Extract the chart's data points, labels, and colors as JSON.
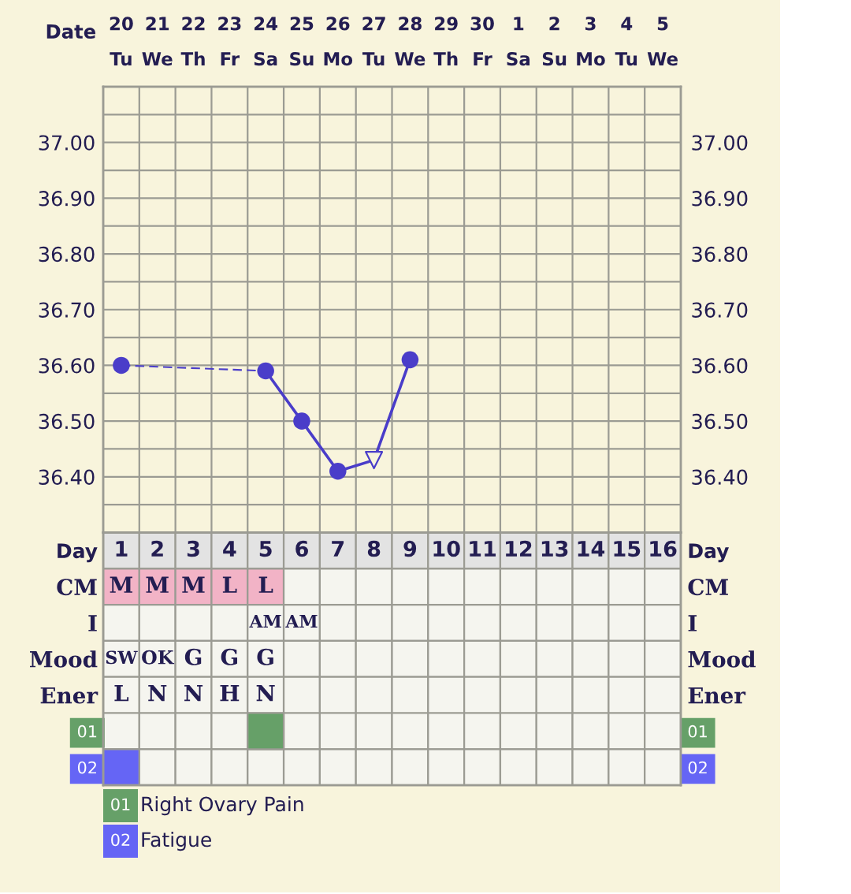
{
  "chart_data": [
    {
      "type": "line",
      "xlabel": "Date",
      "categories": [
        "20\nTu",
        "21\nWe",
        "22\nTh",
        "23\nFr",
        "24\nSa",
        "25\nSu",
        "26\nMo",
        "27\nTu",
        "28\nWe",
        "29\nTh",
        "30\nFr",
        "1\nSa",
        "2\nSu",
        "3\nMo",
        "4\nTu",
        "5\nWe"
      ],
      "ylim": [
        36.3,
        37.1
      ],
      "yticks": [
        {
          "value": 36.35,
          "label": null
        },
        {
          "value": 36.4,
          "label": "36.40"
        },
        {
          "value": 36.45,
          "label": null
        },
        {
          "value": 36.5,
          "label": "36.50"
        },
        {
          "value": 36.55,
          "label": null
        },
        {
          "value": 36.6,
          "label": "36.60"
        },
        {
          "value": 36.65,
          "label": null
        },
        {
          "value": 36.7,
          "label": "36.70"
        },
        {
          "value": 36.75,
          "label": null
        },
        {
          "value": 36.8,
          "label": "36.80"
        },
        {
          "value": 36.85,
          "label": null
        },
        {
          "value": 36.9,
          "label": "36.90"
        },
        {
          "value": 36.95,
          "label": null
        },
        {
          "value": 37.0,
          "label": "37.00"
        },
        {
          "value": 37.05,
          "label": null
        }
      ],
      "y2lim": [
        36.3,
        37.1
      ],
      "y2ticks": [
        {
          "value": 36.35,
          "label": null
        },
        {
          "value": 36.4,
          "label": "36.40"
        },
        {
          "value": 36.45,
          "label": null
        },
        {
          "value": 36.5,
          "label": "36.50"
        },
        {
          "value": 36.55,
          "label": null
        },
        {
          "value": 36.6,
          "label": "36.60"
        },
        {
          "value": 36.65,
          "label": null
        },
        {
          "value": 36.7,
          "label": "36.70"
        },
        {
          "value": 36.75,
          "label": null
        },
        {
          "value": 36.8,
          "label": "36.80"
        },
        {
          "value": 36.85,
          "label": null
        },
        {
          "value": 36.9,
          "label": "36.90"
        },
        {
          "value": 36.95,
          "label": null
        },
        {
          "value": 37.0,
          "label": "37.00"
        },
        {
          "value": 37.05,
          "label": null
        }
      ],
      "grid": true,
      "series": [
        {
          "type": "line",
          "line_style": "dashed",
          "marker": "none",
          "color": "#4a3dc9",
          "values": [
            36.6,
            null,
            null,
            null,
            36.59,
            null,
            null,
            null,
            null,
            null,
            null,
            null,
            null,
            null,
            null,
            null
          ]
        },
        {
          "type": "line",
          "line_style": "solid",
          "marker": "none",
          "color": "#4a3dc9",
          "values": [
            null,
            null,
            null,
            null,
            36.59,
            36.5,
            36.41,
            36.43,
            36.61,
            null,
            null,
            null,
            null,
            null,
            null,
            null
          ]
        },
        {
          "type": "scatter",
          "marker": "circle",
          "color": "#4a3dc9",
          "values": [
            36.6,
            null,
            null,
            null,
            36.59,
            36.5,
            36.41,
            null,
            36.61,
            null,
            null,
            null,
            null,
            null,
            null,
            null
          ]
        },
        {
          "type": "scatter",
          "marker": "triangle",
          "color": "#4a3dc9",
          "values": [
            null,
            null,
            null,
            null,
            null,
            null,
            null,
            36.43,
            null,
            null,
            null,
            null,
            null,
            null,
            null,
            null
          ]
        }
      ]
    },
    {
      "type": "heatmap",
      "categories": [
        "1",
        "2",
        "3",
        "4",
        "5",
        "6",
        "7",
        "8",
        "9",
        "10",
        "11",
        "12",
        "13",
        "14",
        "15",
        "16"
      ],
      "y_categories": [
        "Day",
        "CM",
        "I",
        "Mood",
        "Ener",
        "01",
        "02"
      ],
      "y2_categories": [
        "Day",
        "CM",
        "I",
        "Mood",
        "Ener",
        "01",
        "02"
      ],
      "cells": [
        [
          null,
          null,
          null,
          null,
          null,
          null,
          null,
          null,
          null,
          null,
          null,
          null,
          null,
          null,
          null,
          null
        ],
        [
          null,
          null,
          null,
          null,
          null,
          null,
          null,
          null,
          null,
          null,
          null,
          null,
          null,
          null,
          null,
          null
        ],
        [
          null,
          null,
          null,
          null,
          null,
          null,
          null,
          null,
          null,
          null,
          null,
          null,
          null,
          null,
          null,
          null
        ],
        [
          null,
          null,
          null,
          null,
          null,
          null,
          null,
          null,
          null,
          null,
          null,
          null,
          null,
          null,
          null,
          null
        ],
        [
          null,
          null,
          null,
          null,
          null,
          null,
          null,
          null,
          null,
          null,
          null,
          null,
          null,
          null,
          null,
          null
        ],
        [
          null,
          null,
          null,
          null,
          null,
          null,
          null,
          null,
          null,
          null,
          null,
          null,
          null,
          null,
          null,
          null
        ],
        [
          null,
          null,
          null,
          null,
          null,
          null,
          null,
          null,
          null,
          null,
          null,
          null,
          null,
          null,
          null,
          null
        ]
      ],
      "cell_labels": [
        [
          null,
          null,
          null,
          null,
          null,
          null,
          null,
          null,
          null,
          null,
          null,
          null,
          null,
          null,
          null,
          null
        ],
        [
          "M",
          "M",
          "M",
          "L",
          "L",
          null,
          null,
          null,
          null,
          null,
          null,
          null,
          null,
          null,
          null,
          null
        ],
        [
          null,
          null,
          null,
          null,
          "AM",
          "AM",
          null,
          null,
          null,
          null,
          null,
          null,
          null,
          null,
          null,
          null
        ],
        [
          "SW",
          "OK",
          "G",
          "G",
          "G",
          null,
          null,
          null,
          null,
          null,
          null,
          null,
          null,
          null,
          null,
          null
        ],
        [
          "L",
          "N",
          "N",
          "H",
          "N",
          null,
          null,
          null,
          null,
          null,
          null,
          null,
          null,
          null,
          null,
          null
        ],
        [
          null,
          null,
          null,
          null,
          null,
          null,
          null,
          null,
          null,
          null,
          null,
          null,
          null,
          null,
          null,
          null
        ],
        [
          null,
          null,
          null,
          null,
          null,
          null,
          null,
          null,
          null,
          null,
          null,
          null,
          null,
          null,
          null,
          null
        ]
      ],
      "colors": [
        [
          "#e3e3e3",
          "#e3e3e3",
          "#e3e3e3",
          "#e3e3e3",
          "#e3e3e3",
          "#e3e3e3",
          "#e3e3e3",
          "#e3e3e3",
          "#e3e3e3",
          "#e3e3e3",
          "#e3e3e3",
          "#e3e3e3",
          "#e3e3e3",
          "#e3e3e3",
          "#e3e3e3",
          "#e3e3e3"
        ],
        [
          "#f2b3c6",
          "#f2b3c6",
          "#f2b3c6",
          "#f2b3c6",
          "#f2b3c6",
          null,
          null,
          null,
          null,
          null,
          null,
          null,
          null,
          null,
          null,
          null
        ],
        [
          null,
          null,
          null,
          null,
          null,
          null,
          null,
          null,
          null,
          null,
          null,
          null,
          null,
          null,
          null,
          null
        ],
        [
          null,
          null,
          null,
          null,
          null,
          null,
          null,
          null,
          null,
          null,
          null,
          null,
          null,
          null,
          null,
          null
        ],
        [
          null,
          null,
          null,
          null,
          null,
          null,
          null,
          null,
          null,
          null,
          null,
          null,
          null,
          null,
          null,
          null
        ],
        [
          null,
          null,
          null,
          null,
          "#66a068",
          null,
          null,
          null,
          null,
          null,
          null,
          null,
          null,
          null,
          null,
          null
        ],
        [
          "#6565f5",
          null,
          null,
          null,
          null,
          null,
          null,
          null,
          null,
          null,
          null,
          null,
          null,
          null,
          null,
          null
        ]
      ],
      "series": [
        {
          "name": "Right Ovary Pain",
          "color": "#66a068",
          "values": [
            null,
            null,
            null,
            null,
            null,
            null,
            null,
            null,
            null,
            null,
            null,
            null,
            null,
            null,
            null,
            null
          ]
        },
        {
          "name": "Fatigue",
          "color": "#6565f5",
          "values": [
            null,
            null,
            null,
            null,
            null,
            null,
            null,
            null,
            null,
            null,
            null,
            null,
            null,
            null,
            null,
            null
          ]
        }
      ],
      "legend": "bottom left"
    }
  ]
}
